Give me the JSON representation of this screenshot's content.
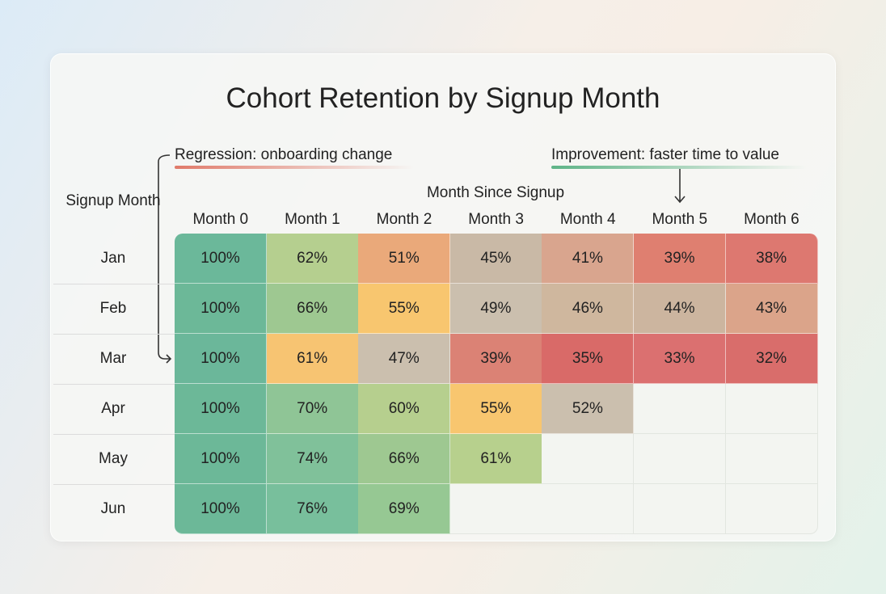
{
  "chart_data": {
    "type": "heatmap",
    "title": "Cohort Retention by Signup Month",
    "xlabel": "Month Since Signup",
    "ylabel": "Signup Month",
    "columns": [
      "Month 0",
      "Month 1",
      "Month 2",
      "Month 3",
      "Month 4",
      "Month 5",
      "Month 6"
    ],
    "rows": [
      "Jan",
      "Feb",
      "Mar",
      "Apr",
      "May",
      "Jun"
    ],
    "values": [
      [
        100,
        62,
        51,
        45,
        41,
        39,
        38
      ],
      [
        100,
        66,
        55,
        49,
        46,
        44,
        43
      ],
      [
        100,
        61,
        47,
        39,
        35,
        33,
        32
      ],
      [
        100,
        70,
        60,
        55,
        52,
        null,
        null
      ],
      [
        100,
        74,
        66,
        61,
        null,
        null,
        null
      ],
      [
        100,
        76,
        69,
        null,
        null,
        null,
        null
      ]
    ],
    "value_format": "percent",
    "colors": [
      [
        "#6bb89a",
        "#b5cf8f",
        "#eaa97a",
        "#c9b9a6",
        "#d9a58e",
        "#df7f70",
        "#dd7870"
      ],
      [
        "#6cb898",
        "#9ec891",
        "#f8c66f",
        "#cbbfae",
        "#cfb79e",
        "#ccb59f",
        "#dba48a"
      ],
      [
        "#6bb79a",
        "#f7c472",
        "#cbbfae",
        "#db8275",
        "#d96a68",
        "#db7070",
        "#d96d6b"
      ],
      [
        "#6cb898",
        "#8fc596",
        "#b6cf8e",
        "#f8c66f",
        "#cbbfae",
        null,
        null
      ],
      [
        "#6cb898",
        "#80c19a",
        "#9ec891",
        "#b7d08d",
        null,
        null,
        null
      ],
      [
        "#6cb898",
        "#78bf9c",
        "#96c893",
        null,
        null,
        null,
        null
      ]
    ],
    "empty_color": "#f3f5f1",
    "annotations": [
      {
        "text": "Regression: onboarding change",
        "target_row": "Mar",
        "color": "#e07a6a"
      },
      {
        "text": "Improvement: faster time to value",
        "target_column": "Month 5",
        "color": "#5fb487"
      }
    ]
  }
}
